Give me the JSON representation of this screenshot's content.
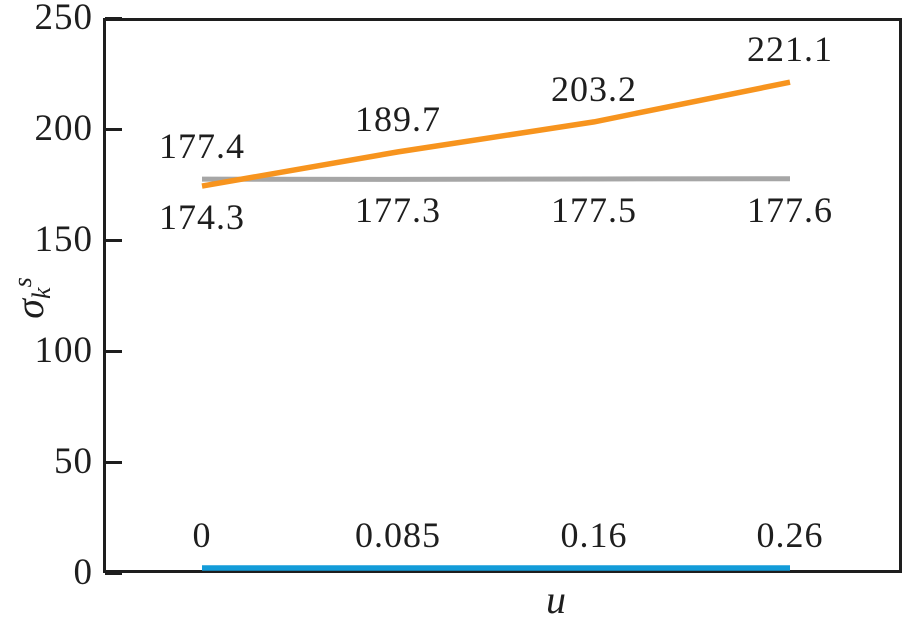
{
  "figure": {
    "background_color": "#ffffff",
    "axis_color": "#1e1e1e",
    "text_color": "#1e1e1e"
  },
  "chart_data": {
    "type": "line",
    "title": "",
    "xlabel": "u",
    "ylabel": "σ_k^s",
    "ylabel_base": "σ",
    "ylabel_sub": "k",
    "ylabel_sup": "s",
    "ylim": [
      0,
      250
    ],
    "y_ticks": [
      "0",
      "50",
      "100",
      "150",
      "200",
      "250"
    ],
    "x_values": [
      0,
      0.085,
      0.16,
      0.26
    ],
    "grid": false,
    "legend": "none",
    "series": [
      {
        "id": "gray-line",
        "color": "#a6a6a6",
        "values": [
          177.4,
          177.3,
          177.5,
          177.6
        ],
        "labels": [
          "177.4",
          "177.3",
          "177.5",
          "177.6"
        ],
        "label_side": [
          "above",
          "below",
          "below",
          "below"
        ]
      },
      {
        "id": "orange-line",
        "color": "#f7941e",
        "values": [
          174.3,
          189.7,
          203.2,
          221.1
        ],
        "labels": [
          "174.3",
          "189.7",
          "203.2",
          "221.1"
        ],
        "label_side": [
          "below",
          "above",
          "above",
          "above"
        ]
      },
      {
        "id": "blue-line",
        "color": "#139cd9",
        "values": [
          0,
          0.085,
          0.16,
          0.26
        ],
        "labels": [
          "0",
          "0.085",
          "0.16",
          "0.26"
        ],
        "label_side": [
          "above",
          "above",
          "above",
          "above"
        ]
      }
    ]
  }
}
